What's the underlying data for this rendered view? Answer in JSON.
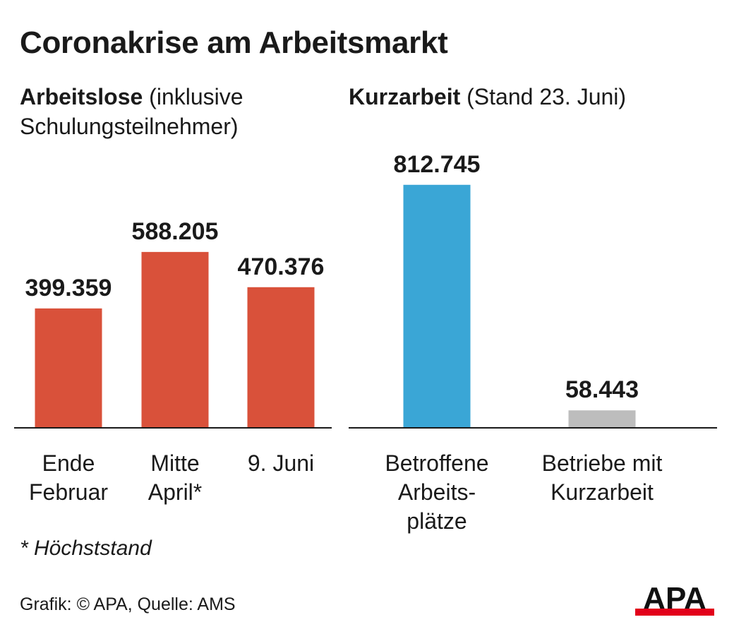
{
  "title": "Coronakrise am Arbeitsmarkt",
  "left_subtitle": {
    "bold": "Arbeitslose",
    "rest": " (inklusive Schulungsteilnehmer)"
  },
  "right_subtitle": {
    "bold": "Kurzarbeit",
    "rest": " (Stand 23. Juni)"
  },
  "footnote": "* Höchststand",
  "source": "Grafik: © APA, Quelle: AMS",
  "logo_text": "APA",
  "colors": {
    "arbeitslose": "#d9513a",
    "betroffene": "#3aa6d6",
    "betriebe": "#bdbdbd",
    "logo_red": "#e2001a"
  },
  "chart_data": [
    {
      "type": "bar",
      "title": "Arbeitslose (inklusive Schulungsteilnehmer)",
      "categories": [
        [
          "Ende",
          "Februar"
        ],
        [
          "Mitte",
          "April*"
        ],
        [
          "9. Juni"
        ]
      ],
      "values": [
        399359,
        588205,
        470376
      ],
      "value_labels": [
        "399.359",
        "588.205",
        "470.376"
      ],
      "color": "#d9513a",
      "ylim": [
        0,
        850000
      ]
    },
    {
      "type": "bar",
      "title": "Kurzarbeit (Stand 23. Juni)",
      "categories": [
        [
          "Betroffene",
          "Arbeits-",
          "plätze"
        ],
        [
          "Betriebe mit",
          "Kurzarbeit"
        ]
      ],
      "values": [
        812745,
        58443
      ],
      "value_labels": [
        "812.745",
        "58.443"
      ],
      "colors": [
        "#3aa6d6",
        "#bdbdbd"
      ],
      "ylim": [
        0,
        850000
      ]
    }
  ]
}
